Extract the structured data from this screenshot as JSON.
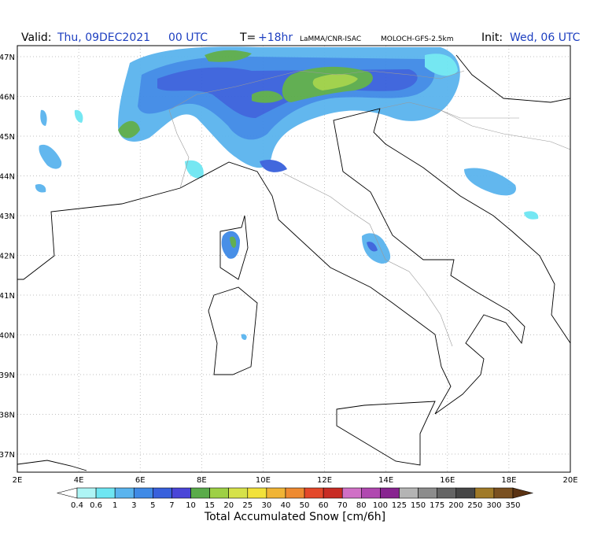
{
  "header": {
    "valid_label": "Valid:",
    "valid_date": "Thu, 09DEC2021",
    "valid_hour": "00 UTC",
    "lead_label": "T=",
    "lead_value": "+18hr",
    "source": "LaMMA/CNR-ISAC",
    "model": "MOLOCH-GFS-2.5km",
    "init_label": "Init:",
    "init_value": "Wed, 06 UTC"
  },
  "map": {
    "lat_labels": [
      "47N",
      "46N",
      "45N",
      "44N",
      "43N",
      "42N",
      "41N",
      "40N",
      "39N",
      "38N",
      "37N"
    ],
    "lon_labels": [
      "2E",
      "4E",
      "6E",
      "8E",
      "10E",
      "12E",
      "14E",
      "16E",
      "18E",
      "20E"
    ]
  },
  "colorbar": {
    "title": "Total Accumulated Snow [cm/6h]",
    "labels": [
      0.4,
      0.6,
      1,
      3,
      5,
      7,
      10,
      15,
      20,
      25,
      30,
      40,
      50,
      60,
      70,
      80,
      100,
      125,
      150,
      175,
      200,
      250,
      300,
      350
    ],
    "colors": [
      "#ffffff",
      "#aef5f5",
      "#6ee6f2",
      "#5ab4ee",
      "#3f8ae6",
      "#3860dc",
      "#4a45d8",
      "#5aab4a",
      "#9ed045",
      "#d6e24a",
      "#f2e23a",
      "#f0b435",
      "#ee8a30",
      "#e4482a",
      "#c82c24",
      "#d070c6",
      "#b048b0",
      "#882490",
      "#b4b4b4",
      "#8c8c8c",
      "#646464",
      "#464646",
      "#a07a28",
      "#7a5020",
      "#5a3212"
    ]
  }
}
